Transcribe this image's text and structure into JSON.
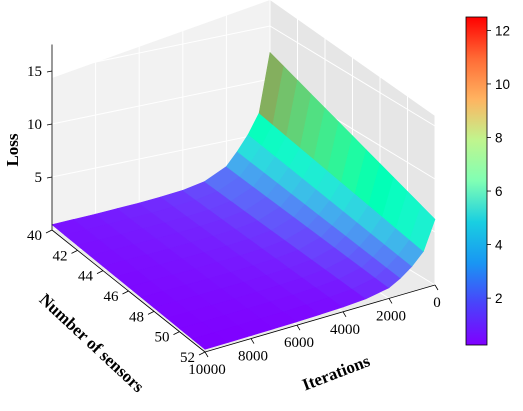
{
  "chart_data": {
    "type": "surface-3d",
    "title": "",
    "x": {
      "label": "Iterations",
      "range": [
        0,
        10000
      ],
      "ticks": [
        0,
        2000,
        4000,
        6000,
        8000,
        10000
      ],
      "tick_labels": [
        "0",
        "2000",
        "4000",
        "6000",
        "8000",
        "10000"
      ]
    },
    "y": {
      "label": "Number of sensors",
      "range": [
        40,
        52
      ],
      "ticks": [
        40,
        42,
        44,
        46,
        48,
        50,
        52
      ],
      "tick_labels": [
        "40",
        "42",
        "44",
        "46",
        "48",
        "50",
        "52"
      ]
    },
    "z": {
      "label": "Loss",
      "range": [
        0,
        17.5
      ],
      "ticks": [
        5,
        10,
        15
      ],
      "tick_labels": [
        "5",
        "10",
        "15"
      ]
    },
    "surface": {
      "description": "Loss vs iterations and number of sensors",
      "iterations": [
        0,
        500,
        1000,
        1500,
        2000,
        3000,
        4000,
        5000,
        6000,
        7000,
        8000,
        9000,
        10000
      ],
      "sensors": [
        40,
        41,
        42,
        43,
        44,
        45,
        46,
        47,
        48,
        49,
        50,
        51,
        52
      ],
      "loss_at_sensors_40": [
        12.5,
        7.0,
        5.2,
        3.8,
        2.6,
        1.6,
        1.2,
        1.0,
        0.85,
        0.75,
        0.65,
        0.58,
        0.5
      ],
      "loss_at_sensors_52": [
        6.2,
        3.5,
        2.4,
        1.6,
        1.0,
        0.6,
        0.45,
        0.38,
        0.33,
        0.3,
        0.28,
        0.26,
        0.25
      ]
    },
    "colormap": "rainbow",
    "colorbar": {
      "range": [
        0.25,
        12.5
      ],
      "ticks": [
        2,
        4,
        6,
        8,
        10,
        12
      ],
      "tick_labels": [
        "2",
        "4",
        "6",
        "8",
        "10",
        "12"
      ]
    },
    "grid": true
  }
}
